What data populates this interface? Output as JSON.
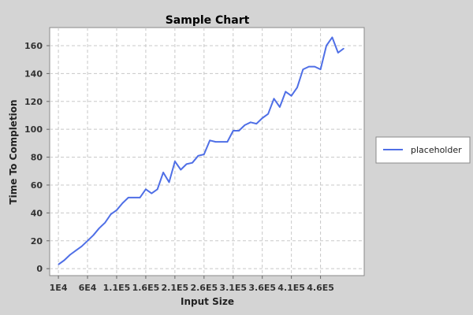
{
  "chart_data": {
    "type": "line",
    "title": "Sample Chart",
    "xlabel": "Input Size",
    "ylabel": "Time To Completion",
    "x_tick_labels": [
      "1E4",
      "6E4",
      "1.1E5",
      "1.6E5",
      "2.1E5",
      "2.6E5",
      "3.1E5",
      "3.6E5",
      "4.1E5",
      "4.6E5"
    ],
    "x_ticks": [
      10000,
      60000,
      110000,
      160000,
      210000,
      260000,
      310000,
      360000,
      410000,
      460000
    ],
    "xlim": [
      -5000,
      535000
    ],
    "y_ticks": [
      0,
      20,
      40,
      60,
      80,
      100,
      120,
      140,
      160
    ],
    "ylim": [
      -5,
      173
    ],
    "grid": true,
    "legend_position": "right",
    "series": [
      {
        "name": "placeholder",
        "color": "#4f6fe6",
        "x": [
          10000,
          20000,
          30000,
          40000,
          50000,
          60000,
          70000,
          80000,
          90000,
          100000,
          110000,
          120000,
          130000,
          140000,
          150000,
          160000,
          170000,
          180000,
          190000,
          200000,
          210000,
          220000,
          230000,
          240000,
          250000,
          260000,
          270000,
          280000,
          290000,
          300000,
          310000,
          320000,
          330000,
          340000,
          350000,
          360000,
          370000,
          380000,
          390000,
          400000,
          410000,
          420000,
          430000,
          440000,
          450000,
          460000,
          470000,
          480000,
          490000,
          500000
        ],
        "y": [
          3,
          6,
          10,
          13,
          16,
          20,
          24,
          29,
          33,
          39,
          42,
          47,
          51,
          51,
          51,
          57,
          54,
          57,
          69,
          62,
          77,
          71,
          75,
          76,
          81,
          82,
          92,
          91,
          91,
          91,
          99,
          99,
          103,
          105,
          104,
          108,
          111,
          122,
          116,
          127,
          124,
          130,
          143,
          145,
          145,
          143,
          160,
          166,
          155,
          158
        ]
      }
    ]
  }
}
